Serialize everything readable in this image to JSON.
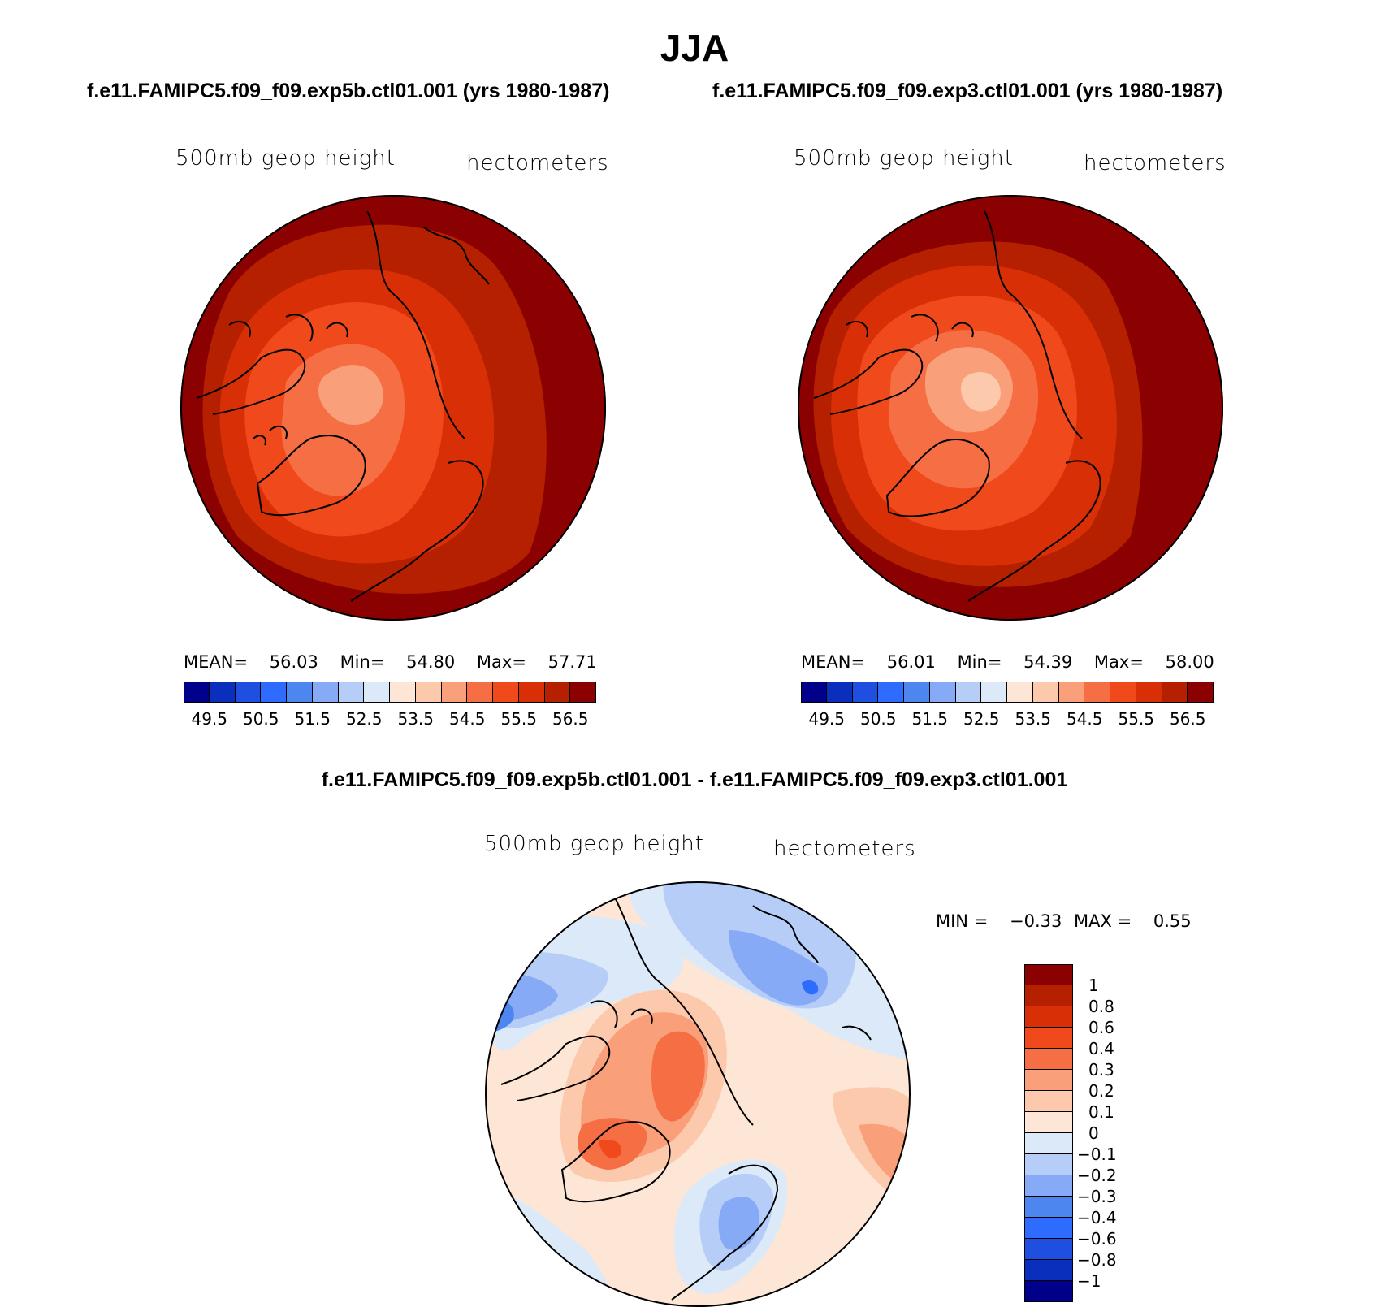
{
  "title": "JJA",
  "panels": {
    "left": {
      "case": "f.e11.FAMIPC5.f09_f09.exp5b.ctl01.001 (yrs 1980-1987)",
      "variable": "500mb geop height",
      "units": "hectometers",
      "mean_label": "MEAN=",
      "mean": "56.03",
      "min_label": "Min=",
      "min": "54.80",
      "max_label": "Max=",
      "max": "57.71",
      "colorbar_ticks": [
        "49.5",
        "50.5",
        "51.5",
        "52.5",
        "53.5",
        "54.5",
        "55.5",
        "56.5"
      ]
    },
    "right": {
      "case": "f.e11.FAMIPC5.f09_f09.exp3.ctl01.001 (yrs 1980-1987)",
      "variable": "500mb geop height",
      "units": "hectometers",
      "mean_label": "MEAN=",
      "mean": "56.01",
      "min_label": "Min=",
      "min": "54.39",
      "max_label": "Max=",
      "max": "58.00",
      "colorbar_ticks": [
        "49.5",
        "50.5",
        "51.5",
        "52.5",
        "53.5",
        "54.5",
        "55.5",
        "56.5"
      ]
    },
    "diff": {
      "title": "f.e11.FAMIPC5.f09_f09.exp5b.ctl01.001 - f.e11.FAMIPC5.f09_f09.exp3.ctl01.001",
      "variable": "500mb geop height",
      "units": "hectometers",
      "min_label": "MIN =",
      "min": "−0.33",
      "max_label": "MAX =",
      "max": "0.55",
      "colorbar_ticks": [
        "1",
        "0.8",
        "0.6",
        "0.4",
        "0.3",
        "0.2",
        "0.1",
        "0",
        "−0.1",
        "−0.2",
        "−0.3",
        "−0.4",
        "−0.6",
        "−0.8",
        "−1"
      ]
    }
  },
  "colors": {
    "abs_palette": [
      "#00008b",
      "#0a2fbd",
      "#1f4fe0",
      "#2e6bff",
      "#4d86ee",
      "#86aaf5",
      "#b5cdf7",
      "#dbe9f9",
      "#fde6d5",
      "#fcc9ad",
      "#f9a07a",
      "#f56e44",
      "#f04a1c",
      "#d92f06",
      "#b52000",
      "#8b0000"
    ],
    "diff_palette": [
      "#8b0000",
      "#b52000",
      "#d92f06",
      "#f04a1c",
      "#f56e44",
      "#f9a07a",
      "#fcc9ad",
      "#fde6d5",
      "#dbe9f9",
      "#b5cdf7",
      "#86aaf5",
      "#4d86ee",
      "#2e6bff",
      "#1f4fe0",
      "#0a2fbd",
      "#00008b"
    ]
  }
}
